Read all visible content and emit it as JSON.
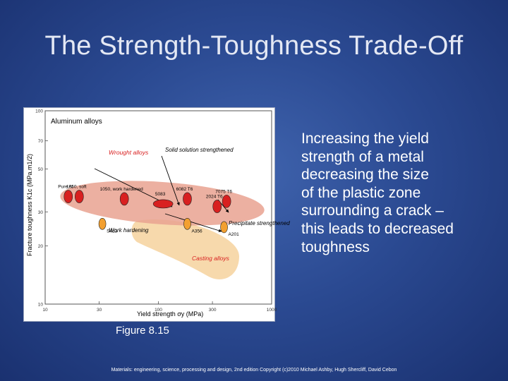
{
  "slide": {
    "title": "The Strength-Toughness Trade-Off",
    "body_lines": [
      "Increasing the yield",
      "strength of a metal",
      "decreasing the size",
      "of the plastic zone",
      "surrounding a crack –",
      "this leads to decreased",
      "toughness"
    ],
    "caption": "Figure 8.15",
    "footer": "Materials: engineering, science, processing and design, 2nd edition Copyright (c)2010 Michael Ashby, Hugh Shercliff, David Cebon"
  },
  "colors": {
    "wrought": "#d82020",
    "casting": "#f3a030",
    "wrought_region": "#e9a290",
    "casting_region": "#f6d29e"
  },
  "chart_data": {
    "type": "scatter",
    "title": "Aluminum alloys",
    "xlabel": "Yield strength σy (MPa)",
    "ylabel": "Fracture toughness K1c (MPa.m1/2)",
    "x_scale": "log",
    "y_scale": "log",
    "xlim": [
      10,
      1000
    ],
    "ylim": [
      10,
      100
    ],
    "x_ticks": [
      "10",
      "30",
      "100",
      "300",
      "1000"
    ],
    "y_ticks": [
      "100",
      "70",
      "50",
      "30",
      "20",
      "10"
    ],
    "grid": false,
    "group_labels": [
      {
        "text": "Wrought alloys",
        "group": "wrought"
      },
      {
        "text": "Casting alloys",
        "group": "casting"
      },
      {
        "text": "Solid solution strengthened",
        "group": "label"
      },
      {
        "text": "Precipitate strengthened",
        "group": "label"
      },
      {
        "text": "Work hardening",
        "group": "label"
      }
    ],
    "series": [
      {
        "name": "Wrought",
        "points": [
          {
            "label": "Pure Al",
            "x": 16,
            "y": 36
          },
          {
            "label": "1050, soft",
            "x": 20,
            "y": 36
          },
          {
            "label": "1050, work hardened",
            "x": 50,
            "y": 35
          },
          {
            "label": "5083",
            "x": 110,
            "y": 33
          },
          {
            "label": "6082 T6",
            "x": 180,
            "y": 35
          },
          {
            "label": "2024 T6",
            "x": 330,
            "y": 32
          },
          {
            "label": "7075 T6",
            "x": 400,
            "y": 34
          }
        ]
      },
      {
        "name": "Casting",
        "points": [
          {
            "label": "S413",
            "x": 32,
            "y": 26
          },
          {
            "label": "A356",
            "x": 180,
            "y": 26
          },
          {
            "label": "A201",
            "x": 380,
            "y": 25
          }
        ]
      }
    ]
  }
}
